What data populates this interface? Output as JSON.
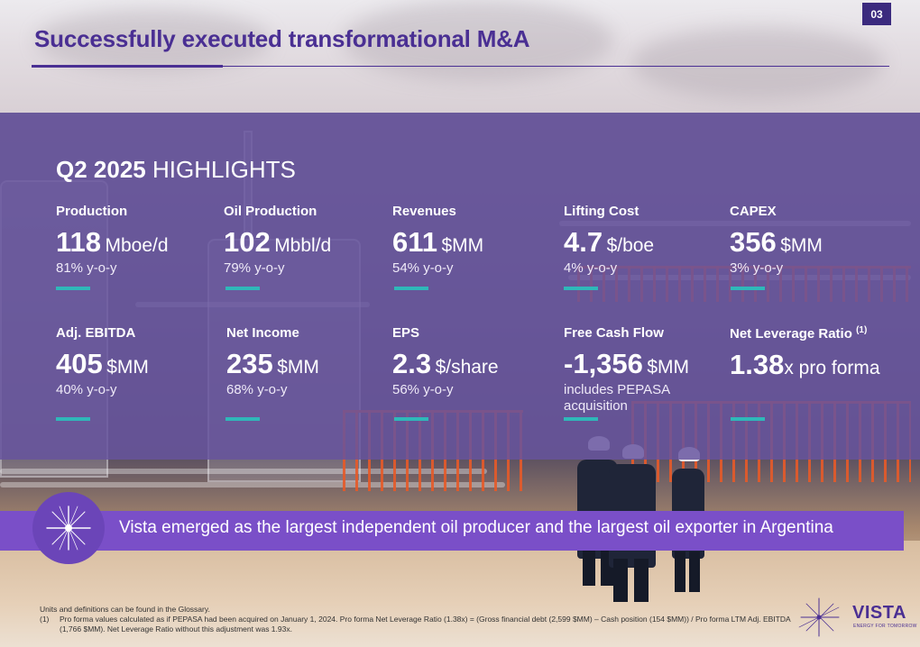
{
  "page_number": "03",
  "title": "Successfully executed transformational M&A",
  "highlights": {
    "period": "Q2 2025",
    "heading_rest": "HIGHLIGHTS"
  },
  "metrics": [
    {
      "label": "Production",
      "value": "118",
      "unit": "Mboe/d",
      "note": "81% y-o-y"
    },
    {
      "label": "Oil Production",
      "value": "102",
      "unit": "Mbbl/d",
      "note": "79% y-o-y"
    },
    {
      "label": "Revenues",
      "value": "611",
      "unit": "$MM",
      "note": "54% y-o-y"
    },
    {
      "label": "Lifting Cost",
      "value": "4.7",
      "unit": "$/boe",
      "note": "4% y-o-y"
    },
    {
      "label": "CAPEX",
      "value": "356",
      "unit": "$MM",
      "note": "3% y-o-y"
    },
    {
      "label": "Adj. EBITDA",
      "value": "405",
      "unit": "$MM",
      "note": "40% y-o-y"
    },
    {
      "label": "Net Income",
      "value": "235",
      "unit": "$MM",
      "note": "68% y-o-y"
    },
    {
      "label": "EPS",
      "value": "2.3",
      "unit": "$/share",
      "note": "56% y-o-y"
    },
    {
      "label": "Free Cash Flow",
      "value": "-1,356",
      "unit": "$MM",
      "note": "includes PEPASA acquisition"
    },
    {
      "label": "Net Leverage Ratio",
      "label_sup": "(1)",
      "value": "1.38",
      "unit": "x pro forma",
      "note": ""
    }
  ],
  "banner": "Vista emerged as the largest independent oil producer and the largest oil exporter in Argentina",
  "footnotes": {
    "intro": "Units and definitions can be found in the Glossary.",
    "items": [
      {
        "mark": "(1)",
        "text": "Pro forma values calculated as if PEPASA had been acquired on January 1, 2024. Pro forma Net Leverage Ratio (1.38x) = (Gross financial debt (2,599 $MM) – Cash position (154 $MM)) / Pro forma LTM Adj. EBITDA (1,766 $MM). Net Leverage Ratio without this adjustment was 1.93x."
      }
    ]
  },
  "logo": {
    "name": "VISTA",
    "tagline": "ENERGY FOR TOMORROW"
  },
  "colors": {
    "brand_purple": "#4a2f93",
    "panel": "#66549e",
    "accent_teal": "#2fb8b9",
    "banner": "#7a4fc8"
  },
  "icons": [
    "star-burst-icon",
    "vista-logo-icon"
  ]
}
